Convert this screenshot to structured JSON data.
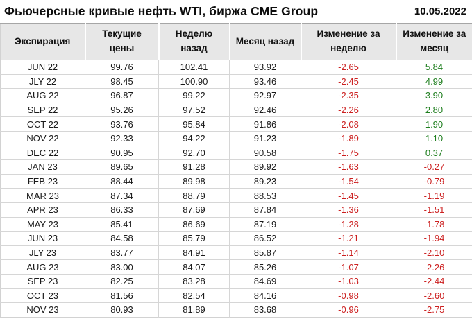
{
  "header": {
    "title": "Фьючерсные кривые нефть WTI, биржа CME Group",
    "date": "10.05.2022"
  },
  "chart_data": {
    "type": "table",
    "title": "Фьючерсные кривые нефть WTI, биржа CME Group",
    "date_label": "10.05.2022",
    "columns": [
      "Экспирация",
      "Текущие цены",
      "Неделю назад",
      "Месяц назад",
      "Изменение за неделю",
      "Изменение за месяц"
    ],
    "rows": [
      [
        "JUN 22",
        99.76,
        102.41,
        93.92,
        -2.65,
        5.84
      ],
      [
        "JLY 22",
        98.45,
        100.9,
        93.46,
        -2.45,
        4.99
      ],
      [
        "AUG 22",
        96.87,
        99.22,
        92.97,
        -2.35,
        3.9
      ],
      [
        "SEP 22",
        95.26,
        97.52,
        92.46,
        -2.26,
        2.8
      ],
      [
        "OCT 22",
        93.76,
        95.84,
        91.86,
        -2.08,
        1.9
      ],
      [
        "NOV 22",
        92.33,
        94.22,
        91.23,
        -1.89,
        1.1
      ],
      [
        "DEC 22",
        90.95,
        92.7,
        90.58,
        -1.75,
        0.37
      ],
      [
        "JAN 23",
        89.65,
        91.28,
        89.92,
        -1.63,
        -0.27
      ],
      [
        "FEB 23",
        88.44,
        89.98,
        89.23,
        -1.54,
        -0.79
      ],
      [
        "MAR 23",
        87.34,
        88.79,
        88.53,
        -1.45,
        -1.19
      ],
      [
        "APR 23",
        86.33,
        87.69,
        87.84,
        -1.36,
        -1.51
      ],
      [
        "MAY 23",
        85.41,
        86.69,
        87.19,
        -1.28,
        -1.78
      ],
      [
        "JUN 23",
        84.58,
        85.79,
        86.52,
        -1.21,
        -1.94
      ],
      [
        "JLY 23",
        83.77,
        84.91,
        85.87,
        -1.14,
        -2.1
      ],
      [
        "AUG 23",
        83.0,
        84.07,
        85.26,
        -1.07,
        -2.26
      ],
      [
        "SEP 23",
        82.25,
        83.28,
        84.69,
        -1.03,
        -2.44
      ],
      [
        "OCT 23",
        81.56,
        82.54,
        84.16,
        -0.98,
        -2.6
      ],
      [
        "NOV 23",
        80.93,
        81.89,
        83.68,
        -0.96,
        -2.75
      ]
    ]
  },
  "colors": {
    "positive": "#1e7e1e",
    "negative": "#cc2020",
    "header_bg": "#e7e7e7"
  }
}
